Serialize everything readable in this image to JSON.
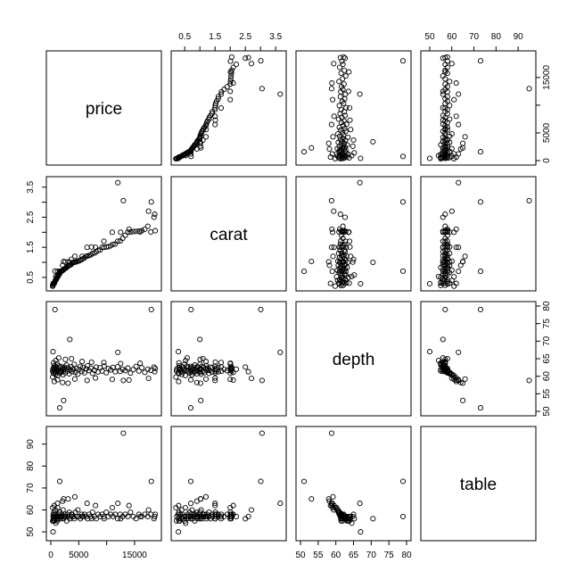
{
  "chart_data": {
    "type": "scatter",
    "variables": [
      {
        "name": "price",
        "range": [
          0,
          19000
        ],
        "ticks": [
          0,
          5000,
          10000,
          15000
        ],
        "tick_labels": [
          "0",
          "5000",
          "15000"
        ],
        "tick_label_values": [
          0,
          5000,
          15000
        ]
      },
      {
        "name": "carat",
        "range": [
          0.2,
          3.7
        ],
        "ticks": [
          0.5,
          1.0,
          1.5,
          2.0,
          2.5,
          3.0,
          3.5
        ],
        "tick_labels": [
          "0.5",
          "1.5",
          "2.5",
          "3.5"
        ],
        "tick_label_values": [
          0.5,
          1.5,
          2.5,
          3.5
        ]
      },
      {
        "name": "depth",
        "range": [
          50,
          80
        ],
        "ticks": [
          50,
          55,
          60,
          65,
          70,
          75,
          80
        ],
        "tick_labels": [
          "50",
          "55",
          "60",
          "65",
          "70",
          "75",
          "80"
        ],
        "tick_label_values": [
          50,
          55,
          60,
          65,
          70,
          75,
          80
        ]
      },
      {
        "name": "table",
        "range": [
          48,
          96
        ],
        "ticks": [
          50,
          60,
          70,
          80,
          90
        ],
        "tick_labels": [
          "50",
          "60",
          "70",
          "80",
          "90"
        ],
        "tick_label_values": [
          50,
          60,
          70,
          80,
          90
        ]
      }
    ],
    "observations": [
      [
        326,
        0.23,
        61.5,
        55
      ],
      [
        334,
        0.21,
        59.8,
        61
      ],
      [
        405,
        0.24,
        62.1,
        57
      ],
      [
        450,
        0.28,
        61.0,
        58
      ],
      [
        520,
        0.3,
        62.4,
        56
      ],
      [
        552,
        0.31,
        60.8,
        59
      ],
      [
        590,
        0.32,
        63.0,
        57
      ],
      [
        640,
        0.33,
        61.9,
        55
      ],
      [
        700,
        0.35,
        62.2,
        58
      ],
      [
        760,
        0.38,
        61.4,
        56
      ],
      [
        810,
        0.4,
        60.5,
        60
      ],
      [
        870,
        0.41,
        62.7,
        57
      ],
      [
        940,
        0.42,
        61.1,
        58
      ],
      [
        1010,
        0.45,
        62.0,
        56
      ],
      [
        1080,
        0.5,
        61.6,
        57
      ],
      [
        1150,
        0.5,
        63.5,
        55
      ],
      [
        1230,
        0.52,
        60.2,
        61
      ],
      [
        1310,
        0.55,
        61.8,
        57
      ],
      [
        1390,
        0.57,
        62.9,
        56
      ],
      [
        1470,
        0.6,
        61.3,
        58
      ],
      [
        1560,
        0.62,
        62.5,
        57
      ],
      [
        1650,
        0.66,
        60.9,
        59
      ],
      [
        1750,
        0.7,
        61.7,
        57
      ],
      [
        1850,
        0.7,
        62.8,
        56
      ],
      [
        1950,
        0.71,
        61.2,
        58
      ],
      [
        2060,
        0.72,
        62.3,
        57
      ],
      [
        2180,
        0.74,
        60.4,
        60
      ],
      [
        2300,
        0.76,
        61.9,
        56
      ],
      [
        2420,
        0.78,
        62.6,
        57
      ],
      [
        2550,
        0.8,
        61.0,
        58
      ],
      [
        2690,
        0.81,
        62.1,
        57
      ],
      [
        2830,
        0.83,
        63.2,
        55
      ],
      [
        2980,
        0.86,
        61.5,
        58
      ],
      [
        3130,
        0.9,
        62.4,
        57
      ],
      [
        3290,
        0.9,
        60.7,
        59
      ],
      [
        3460,
        0.91,
        61.8,
        56
      ],
      [
        3640,
        0.93,
        62.7,
        57
      ],
      [
        3820,
        0.97,
        61.3,
        58
      ],
      [
        4010,
        1.0,
        62.0,
        57
      ],
      [
        4200,
        1.0,
        63.4,
        56
      ],
      [
        4400,
        1.01,
        61.1,
        59
      ],
      [
        4610,
        1.02,
        62.2,
        57
      ],
      [
        4830,
        1.04,
        60.6,
        60
      ],
      [
        5050,
        1.05,
        61.9,
        57
      ],
      [
        5280,
        1.07,
        62.8,
        56
      ],
      [
        5520,
        1.1,
        61.4,
        58
      ],
      [
        5770,
        1.12,
        62.5,
        57
      ],
      [
        6030,
        1.15,
        61.0,
        58
      ],
      [
        6300,
        1.2,
        62.1,
        57
      ],
      [
        6580,
        1.21,
        63.0,
        56
      ],
      [
        6870,
        1.23,
        61.6,
        58
      ],
      [
        7170,
        1.25,
        62.3,
        57
      ],
      [
        7480,
        1.3,
        60.8,
        59
      ],
      [
        7800,
        1.31,
        61.7,
        57
      ],
      [
        8130,
        1.35,
        62.6,
        56
      ],
      [
        8470,
        1.4,
        61.2,
        58
      ],
      [
        8820,
        1.41,
        62.4,
        57
      ],
      [
        9180,
        1.5,
        61.5,
        58
      ],
      [
        9550,
        1.5,
        62.9,
        56
      ],
      [
        9930,
        1.51,
        61.0,
        59
      ],
      [
        10320,
        1.52,
        62.2,
        57
      ],
      [
        10720,
        1.55,
        61.8,
        58
      ],
      [
        11130,
        1.6,
        62.5,
        57
      ],
      [
        11550,
        1.61,
        61.3,
        58
      ],
      [
        11980,
        1.7,
        62.7,
        56
      ],
      [
        12420,
        1.71,
        61.4,
        58
      ],
      [
        12870,
        1.8,
        62.0,
        57
      ],
      [
        13330,
        1.9,
        61.6,
        58
      ],
      [
        13800,
        2.0,
        62.3,
        57
      ],
      [
        14280,
        2.01,
        60.9,
        59
      ],
      [
        14770,
        2.02,
        61.9,
        57
      ],
      [
        15270,
        2.03,
        62.8,
        56
      ],
      [
        15780,
        2.04,
        61.5,
        58
      ],
      [
        16300,
        2.05,
        62.4,
        57
      ],
      [
        16830,
        2.1,
        61.1,
        58
      ],
      [
        17370,
        2.2,
        62.0,
        57
      ],
      [
        17920,
        2.01,
        61.7,
        58
      ],
      [
        18480,
        2.5,
        62.6,
        56
      ],
      [
        18600,
        2.6,
        61.3,
        57
      ],
      [
        18700,
        2.05,
        62.2,
        58
      ],
      [
        500,
        0.31,
        63.8,
        55
      ],
      [
        620,
        0.3,
        58.5,
        62
      ],
      [
        900,
        0.53,
        64.5,
        54
      ],
      [
        1200,
        0.7,
        59.0,
        63
      ],
      [
        1400,
        0.58,
        65.2,
        56
      ],
      [
        2100,
        0.9,
        58.2,
        64
      ],
      [
        2600,
        1.01,
        64.8,
        57
      ],
      [
        3100,
        1.02,
        58.0,
        65
      ],
      [
        3700,
        1.1,
        65.0,
        58
      ],
      [
        4300,
        1.2,
        59.2,
        66
      ],
      [
        5600,
        1.2,
        64.2,
        57
      ],
      [
        6500,
        1.5,
        58.8,
        63
      ],
      [
        7300,
        1.51,
        64.0,
        56
      ],
      [
        8000,
        1.5,
        59.5,
        62
      ],
      [
        9500,
        1.7,
        63.9,
        57
      ],
      [
        11000,
        2.0,
        59.1,
        61
      ],
      [
        12500,
        2.0,
        63.6,
        56
      ],
      [
        14000,
        2.1,
        58.9,
        62
      ],
      [
        16000,
        2.01,
        63.7,
        57
      ],
      [
        17500,
        2.7,
        59.4,
        60
      ],
      [
        12000,
        3.65,
        66.8,
        63
      ],
      [
        13000,
        3.05,
        58.8,
        95
      ],
      [
        18000,
        3.01,
        79.0,
        73
      ],
      [
        2300,
        1.03,
        53.1,
        65
      ],
      [
        750,
        0.71,
        79.0,
        57
      ],
      [
        3400,
        1.0,
        70.5,
        56
      ],
      [
        1600,
        0.7,
        51.0,
        73
      ],
      [
        400,
        0.29,
        67.0,
        50
      ]
    ]
  }
}
